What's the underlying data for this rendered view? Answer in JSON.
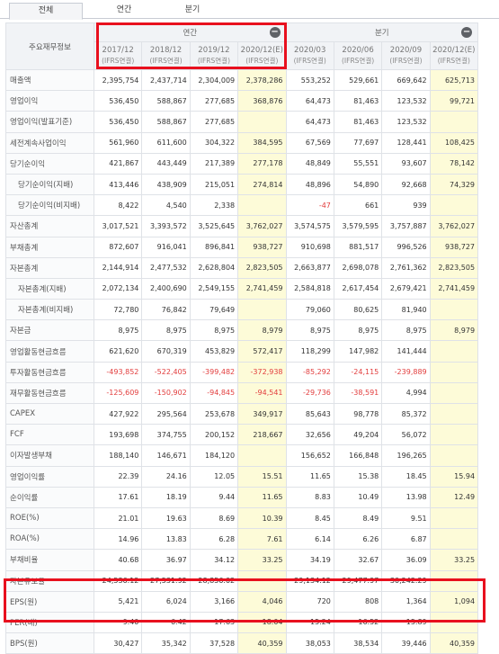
{
  "tabs": [
    {
      "label": "전체",
      "active": true
    },
    {
      "label": "연간",
      "active": false
    },
    {
      "label": "분기",
      "active": false
    }
  ],
  "table": {
    "row_header_label": "주요재무정보",
    "groups": [
      {
        "label": "연간",
        "collapse_icon": "minus-circle-icon"
      },
      {
        "label": "분기",
        "collapse_icon": "minus-circle-icon"
      }
    ],
    "periods": [
      {
        "label": "2017/12",
        "sub": "(IFRS연결)"
      },
      {
        "label": "2018/12",
        "sub": "(IFRS연결)"
      },
      {
        "label": "2019/12",
        "sub": "(IFRS연결)"
      },
      {
        "label": "2020/12(E)",
        "sub": "(IFRS연결)"
      },
      {
        "label": "2020/03",
        "sub": "(IFRS연결)"
      },
      {
        "label": "2020/06",
        "sub": "(IFRS연결)"
      },
      {
        "label": "2020/09",
        "sub": "(IFRS연결)"
      },
      {
        "label": "2020/12(E)",
        "sub": "(IFRS연결)"
      }
    ],
    "rows": [
      {
        "label": "매출액",
        "indent": false,
        "values": [
          "2,395,754",
          "2,437,714",
          "2,304,009",
          "2,378,286",
          "553,252",
          "529,661",
          "669,642",
          "625,713"
        ]
      },
      {
        "label": "영업이익",
        "indent": false,
        "values": [
          "536,450",
          "588,867",
          "277,685",
          "368,876",
          "64,473",
          "81,463",
          "123,532",
          "99,721"
        ]
      },
      {
        "label": "영업이익(발표기준)",
        "indent": false,
        "values": [
          "536,450",
          "588,867",
          "277,685",
          "",
          "64,473",
          "81,463",
          "123,532",
          ""
        ]
      },
      {
        "label": "세전계속사업이익",
        "indent": false,
        "values": [
          "561,960",
          "611,600",
          "304,322",
          "384,595",
          "67,569",
          "77,697",
          "128,441",
          "108,425"
        ]
      },
      {
        "label": "당기순이익",
        "indent": false,
        "values": [
          "421,867",
          "443,449",
          "217,389",
          "277,178",
          "48,849",
          "55,551",
          "93,607",
          "78,142"
        ]
      },
      {
        "label": "당기순이익(지배)",
        "indent": true,
        "values": [
          "413,446",
          "438,909",
          "215,051",
          "274,814",
          "48,896",
          "54,890",
          "92,668",
          "74,329"
        ]
      },
      {
        "label": "당기순이익(비지배)",
        "indent": true,
        "values": [
          "8,422",
          "4,540",
          "2,338",
          "",
          "-47",
          "661",
          "939",
          ""
        ]
      },
      {
        "label": "자산총계",
        "indent": false,
        "values": [
          "3,017,521",
          "3,393,572",
          "3,525,645",
          "3,762,027",
          "3,574,575",
          "3,579,595",
          "3,757,887",
          "3,762,027"
        ]
      },
      {
        "label": "부채총계",
        "indent": false,
        "values": [
          "872,607",
          "916,041",
          "896,841",
          "938,727",
          "910,698",
          "881,517",
          "996,526",
          "938,727"
        ]
      },
      {
        "label": "자본총계",
        "indent": false,
        "values": [
          "2,144,914",
          "2,477,532",
          "2,628,804",
          "2,823,505",
          "2,663,877",
          "2,698,078",
          "2,761,362",
          "2,823,505"
        ]
      },
      {
        "label": "자본총계(지배)",
        "indent": true,
        "values": [
          "2,072,134",
          "2,400,690",
          "2,549,155",
          "2,741,459",
          "2,584,818",
          "2,617,454",
          "2,679,421",
          "2,741,459"
        ]
      },
      {
        "label": "자본총계(비지배)",
        "indent": true,
        "values": [
          "72,780",
          "76,842",
          "79,649",
          "",
          "79,060",
          "80,625",
          "81,940",
          ""
        ]
      },
      {
        "label": "자본금",
        "indent": false,
        "values": [
          "8,975",
          "8,975",
          "8,975",
          "8,979",
          "8,975",
          "8,975",
          "8,975",
          "8,979"
        ]
      },
      {
        "label": "영업활동현금흐름",
        "indent": false,
        "values": [
          "621,620",
          "670,319",
          "453,829",
          "572,417",
          "118,299",
          "147,982",
          "141,444",
          ""
        ]
      },
      {
        "label": "투자활동현금흐름",
        "indent": false,
        "values": [
          "-493,852",
          "-522,405",
          "-399,482",
          "-372,938",
          "-85,292",
          "-24,115",
          "-239,889",
          ""
        ]
      },
      {
        "label": "재무활동현금흐름",
        "indent": false,
        "values": [
          "-125,609",
          "-150,902",
          "-94,845",
          "-94,541",
          "-29,736",
          "-38,591",
          "4,994",
          ""
        ]
      },
      {
        "label": "CAPEX",
        "indent": false,
        "values": [
          "427,922",
          "295,564",
          "253,678",
          "349,917",
          "85,643",
          "98,778",
          "85,372",
          ""
        ]
      },
      {
        "label": "FCF",
        "indent": false,
        "values": [
          "193,698",
          "374,755",
          "200,152",
          "218,667",
          "32,656",
          "49,204",
          "56,072",
          ""
        ]
      },
      {
        "label": "이자발생부채",
        "indent": false,
        "values": [
          "188,140",
          "146,671",
          "184,120",
          "",
          "156,652",
          "166,848",
          "196,265",
          ""
        ]
      },
      {
        "label": "영업이익률",
        "indent": false,
        "values": [
          "22.39",
          "24.16",
          "12.05",
          "15.51",
          "11.65",
          "15.38",
          "18.45",
          "15.94"
        ]
      },
      {
        "label": "순이익률",
        "indent": false,
        "values": [
          "17.61",
          "18.19",
          "9.44",
          "11.65",
          "8.83",
          "10.49",
          "13.98",
          "12.49"
        ]
      },
      {
        "label": "ROE(%)",
        "indent": false,
        "values": [
          "21.01",
          "19.63",
          "8.69",
          "10.39",
          "8.45",
          "8.49",
          "9.51",
          ""
        ]
      },
      {
        "label": "ROA(%)",
        "indent": false,
        "values": [
          "14.96",
          "13.83",
          "6.28",
          "7.61",
          "6.14",
          "6.26",
          "6.87",
          ""
        ]
      },
      {
        "label": "부채비율",
        "indent": false,
        "values": [
          "40.68",
          "36.97",
          "34.12",
          "33.25",
          "34.19",
          "32.67",
          "36.09",
          "33.25"
        ]
      },
      {
        "label": "자본유보율",
        "indent": false,
        "values": [
          "24,536.12",
          "27,531.92",
          "28,856.02",
          "",
          "29,134.12",
          "29,477.97",
          "30,242.29",
          ""
        ]
      },
      {
        "label": "EPS(원)",
        "indent": false,
        "values": [
          "5,421",
          "6,024",
          "3,166",
          "4,046",
          "720",
          "808",
          "1,364",
          "1,094"
        ]
      },
      {
        "label": "PER(배)",
        "indent": false,
        "values": [
          "9.40",
          "6.42",
          "17.63",
          "18.04",
          "15.24",
          "16.52",
          "15.89",
          ""
        ]
      },
      {
        "label": "BPS(원)",
        "indent": false,
        "values": [
          "30,427",
          "35,342",
          "37,528",
          "40,359",
          "38,053",
          "38,534",
          "39,446",
          "40,359"
        ]
      }
    ]
  },
  "colors": {
    "estimate_bg": "#fdfbd8",
    "negative_text": "#e23d3d",
    "highlight_box": "#e8101e",
    "header_bg": "#f1f3f6"
  }
}
